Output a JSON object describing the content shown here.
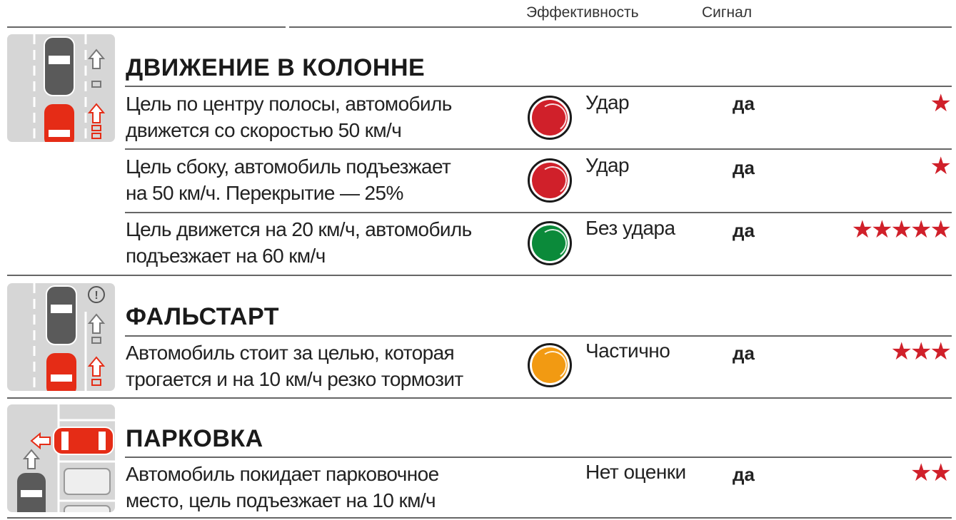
{
  "header": {
    "effectiveness": "Эффективность",
    "signal": "Сигнал"
  },
  "colors": {
    "red": "#d0202a",
    "green": "#0b8a3a",
    "orange": "#f29a12",
    "star": "#d0202a"
  },
  "sections": [
    {
      "title": "ДВИЖЕНИЕ В КОЛОННЕ",
      "icon": "car-following-icon",
      "rows": [
        {
          "line1": "Цель по центру полосы, автомобиль",
          "line2": "движется со скоростью 50 км/ч",
          "status": "red",
          "result": "Удар",
          "signal": "да",
          "stars": "★",
          "rating": 1
        },
        {
          "line1": "Цель сбоку, автомобиль подъезжает",
          "line2": "на 50 км/ч. Перекрытие — 25%",
          "status": "red",
          "result": "Удар",
          "signal": "да",
          "stars": "★",
          "rating": 1
        },
        {
          "line1": "Цель движется на 20 км/ч, автомобиль",
          "line2": "подъезжает на 60 км/ч",
          "status": "green",
          "result": "Без удара",
          "signal": "да",
          "stars": "★★★★★",
          "rating": 5
        }
      ]
    },
    {
      "title": "ФАЛЬСТАРТ",
      "icon": "false-start-icon",
      "rows": [
        {
          "line1": "Автомобиль стоит за целью, которая",
          "line2": "трогается и на  10 км/ч резко тормозит",
          "status": "orange",
          "result": "Частично",
          "signal": "да",
          "stars": "★★★",
          "rating": 3
        }
      ]
    },
    {
      "title": "ПАРКОВКА",
      "icon": "parking-icon",
      "rows": [
        {
          "line1": "Автомобиль покидает парковочное",
          "line2": "место, цель подъезжает на 10 км/ч",
          "status": "none",
          "result": "Нет оценки",
          "signal": "да",
          "stars": "★★",
          "rating": 2
        }
      ]
    }
  ]
}
